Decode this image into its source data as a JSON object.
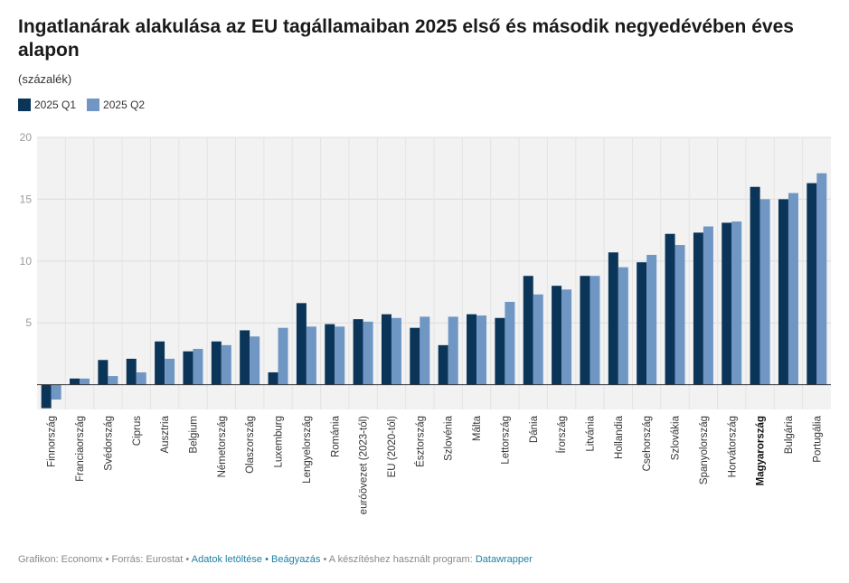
{
  "chart_data": {
    "type": "bar",
    "title": "Ingatlanárak alakulása az EU tagállamaiban 2025 első és második negyedévében éves alapon",
    "subtitle": "(százalék)",
    "ylim": [
      -2,
      20
    ],
    "yticks": [
      5,
      10,
      15,
      20
    ],
    "highlight_category": "Magyarország",
    "categories": [
      "Finnország",
      "Franciaország",
      "Svédország",
      "Ciprus",
      "Ausztria",
      "Belgium",
      "Németország",
      "Olaszország",
      "Luxemburg",
      "Lengyelország",
      "Románia",
      "euróövezet (2023-tól)",
      "EU (2020-tól)",
      "Észtország",
      "Szlovénia",
      "Málta",
      "Lettország",
      "Dánia",
      "Írország",
      "Litvánia",
      "Hollandia",
      "Csehország",
      "Szlovákia",
      "Spanyolország",
      "Horvátország",
      "Magyarország",
      "Bulgária",
      "Portugália"
    ],
    "series": [
      {
        "name": "2025 Q1",
        "color": "#0b3558",
        "values": [
          -1.9,
          0.5,
          2.0,
          2.1,
          3.5,
          2.7,
          3.5,
          4.4,
          1.0,
          6.6,
          4.9,
          5.3,
          5.7,
          4.6,
          3.2,
          5.7,
          5.4,
          8.8,
          8.0,
          8.8,
          10.7,
          9.9,
          12.2,
          12.3,
          13.1,
          16.0,
          15.0,
          16.3
        ]
      },
      {
        "name": "2025 Q2",
        "color": "#7096c4",
        "values": [
          -1.2,
          0.5,
          0.7,
          1.0,
          2.1,
          2.9,
          3.2,
          3.9,
          4.6,
          4.7,
          4.7,
          5.1,
          5.4,
          5.5,
          5.5,
          5.6,
          6.7,
          7.3,
          7.7,
          8.8,
          9.5,
          10.5,
          11.3,
          12.8,
          13.2,
          15.0,
          15.5,
          17.1
        ]
      }
    ]
  },
  "footer": {
    "credit": "Grafikon: Economx • Forrás: Eurostat •",
    "download_link": "Adatok letöltése",
    "sep": "•",
    "embed_link": "Beágyazás",
    "made_with": " • A készítéshez használt program:",
    "tool_link": "Datawrapper"
  }
}
